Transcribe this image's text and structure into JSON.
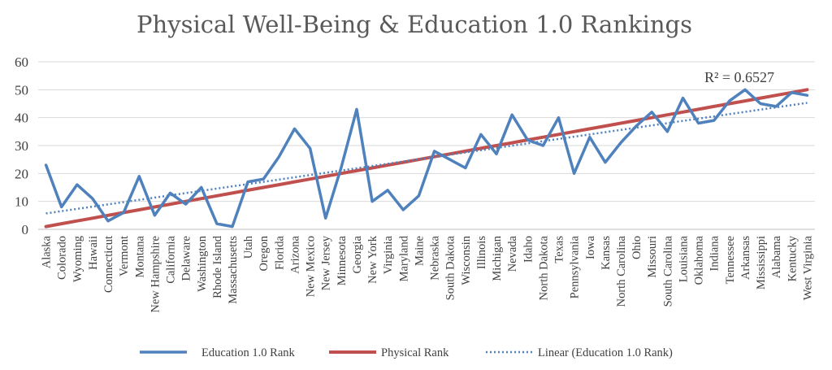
{
  "chart_data": {
    "type": "line",
    "title": "Physical Well-Being & Education 1.0 Rankings",
    "xlabel": "",
    "ylabel": "",
    "ylim": [
      0,
      60
    ],
    "yticks": [
      0,
      10,
      20,
      30,
      40,
      50,
      60
    ],
    "grid": true,
    "legend_position": "bottom",
    "categories": [
      "Alaska",
      "Colorado",
      "Wyoming",
      "Hawaii",
      "Connecticut",
      "Vermont",
      "Montana",
      "New Hampshire",
      "California",
      "Delaware",
      "Washington",
      "Rhode Island",
      "Massachusetts",
      "Utah",
      "Oregon",
      "Florida",
      "Arizona",
      "New Mexico",
      "New Jersey",
      "Minnesota",
      "Georgia",
      "New York",
      "Virginia",
      "Maryland",
      "Maine",
      "Nebraska",
      "South Dakota",
      "Wisconsin",
      "Illinois",
      "Michigan",
      "Nevada",
      "Idaho",
      "North Dakota",
      "Texas",
      "Pennsylvania",
      "Iowa",
      "Kansas",
      "North Carolina",
      "Ohio",
      "Missouri",
      "South Carolina",
      "Louisiana",
      "Oklahoma",
      "Indiana",
      "Tennessee",
      "Arkansas",
      "Mississippi",
      "Alabama",
      "Kentucky",
      "West Virginia"
    ],
    "series": [
      {
        "name": "Education 1.0 Rank",
        "color": "#4F81BD",
        "style": "solid",
        "values": [
          23,
          8,
          16,
          11,
          3,
          6,
          19,
          5,
          13,
          9,
          15,
          2,
          1,
          17,
          18,
          26,
          36,
          29,
          4,
          22,
          43,
          10,
          14,
          7,
          12,
          28,
          25,
          22,
          34,
          27,
          41,
          32,
          30,
          40,
          20,
          33,
          24,
          31,
          37,
          42,
          35,
          47,
          38,
          39,
          46,
          50,
          45,
          44,
          49,
          48
        ]
      },
      {
        "name": "Physical Rank",
        "color": "#C0504D",
        "style": "solid",
        "values": [
          1,
          2,
          3,
          4,
          5,
          6,
          7,
          8,
          9,
          10,
          11,
          12,
          13,
          14,
          15,
          16,
          17,
          18,
          19,
          20,
          21,
          22,
          23,
          24,
          25,
          26,
          27,
          28,
          29,
          30,
          31,
          32,
          33,
          34,
          35,
          36,
          37,
          38,
          39,
          40,
          41,
          42,
          43,
          44,
          45,
          46,
          47,
          48,
          49,
          50
        ]
      },
      {
        "name": "Linear (Education 1.0 Rank)",
        "color": "#4F81BD",
        "style": "dotted",
        "trendline": {
          "start": 5.7,
          "end": 45.3
        }
      }
    ],
    "annotation": "R² = 0.6527"
  }
}
